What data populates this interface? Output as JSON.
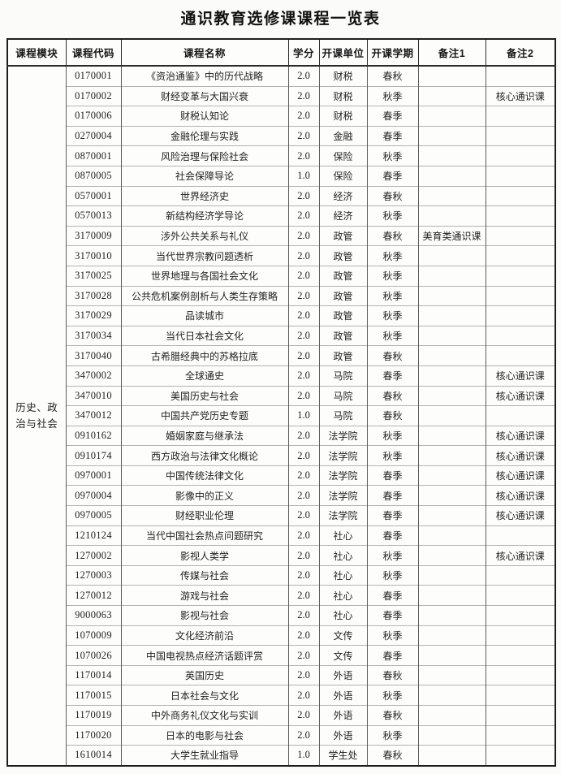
{
  "title": "通识教育选修课课程一览表",
  "table": {
    "headers": [
      "课程模块",
      "课程代码",
      "课程名称",
      "学分",
      "开课单位",
      "开课学期",
      "备注1",
      "备注2"
    ],
    "module_label": "历史、政治与社会",
    "rows": [
      {
        "code": "0170001",
        "name": "《资治通鉴》中的历代战略",
        "credit": "2.0",
        "unit": "财税",
        "semester": "春秋",
        "note1": "",
        "note2": ""
      },
      {
        "code": "0170002",
        "name": "财经变革与大国兴衰",
        "credit": "2.0",
        "unit": "财税",
        "semester": "秋季",
        "note1": "",
        "note2": "核心通识课"
      },
      {
        "code": "0170006",
        "name": "财税认知论",
        "credit": "2.0",
        "unit": "财税",
        "semester": "春季",
        "note1": "",
        "note2": ""
      },
      {
        "code": "0270004",
        "name": "金融伦理与实践",
        "credit": "2.0",
        "unit": "金融",
        "semester": "春季",
        "note1": "",
        "note2": ""
      },
      {
        "code": "0870001",
        "name": "风险治理与保险社会",
        "credit": "2.0",
        "unit": "保险",
        "semester": "秋季",
        "note1": "",
        "note2": ""
      },
      {
        "code": "0870005",
        "name": "社会保障导论",
        "credit": "1.0",
        "unit": "保险",
        "semester": "春季",
        "note1": "",
        "note2": ""
      },
      {
        "code": "0570001",
        "name": "世界经济史",
        "credit": "2.0",
        "unit": "经济",
        "semester": "春秋",
        "note1": "",
        "note2": ""
      },
      {
        "code": "0570013",
        "name": "新结构经济学导论",
        "credit": "2.0",
        "unit": "经济",
        "semester": "秋季",
        "note1": "",
        "note2": ""
      },
      {
        "code": "3170009",
        "name": "涉外公共关系与礼仪",
        "credit": "2.0",
        "unit": "政管",
        "semester": "春秋",
        "note1": "美育类通识课",
        "note2": ""
      },
      {
        "code": "3170010",
        "name": "当代世界宗教问题透析",
        "credit": "2.0",
        "unit": "政管",
        "semester": "秋季",
        "note1": "",
        "note2": ""
      },
      {
        "code": "3170025",
        "name": "世界地理与各国社会文化",
        "credit": "2.0",
        "unit": "政管",
        "semester": "秋季",
        "note1": "",
        "note2": ""
      },
      {
        "code": "3170028",
        "name": "公共危机案例剖析与人类生存策略",
        "credit": "2.0",
        "unit": "政管",
        "semester": "秋季",
        "note1": "",
        "note2": ""
      },
      {
        "code": "3170029",
        "name": "品读城市",
        "credit": "2.0",
        "unit": "政管",
        "semester": "秋季",
        "note1": "",
        "note2": ""
      },
      {
        "code": "3170034",
        "name": "当代日本社会文化",
        "credit": "2.0",
        "unit": "政管",
        "semester": "秋季",
        "note1": "",
        "note2": ""
      },
      {
        "code": "3170040",
        "name": "古希腊经典中的苏格拉底",
        "credit": "2.0",
        "unit": "政管",
        "semester": "春秋",
        "note1": "",
        "note2": ""
      },
      {
        "code": "3470002",
        "name": "全球通史",
        "credit": "2.0",
        "unit": "马院",
        "semester": "春季",
        "note1": "",
        "note2": "核心通识课"
      },
      {
        "code": "3470010",
        "name": "美国历史与社会",
        "credit": "2.0",
        "unit": "马院",
        "semester": "春秋",
        "note1": "",
        "note2": "核心通识课"
      },
      {
        "code": "3470012",
        "name": "中国共产党历史专题",
        "credit": "1.0",
        "unit": "马院",
        "semester": "春秋",
        "note1": "",
        "note2": ""
      },
      {
        "code": "0910162",
        "name": "婚姻家庭与继承法",
        "credit": "2.0",
        "unit": "法学院",
        "semester": "秋季",
        "note1": "",
        "note2": "核心通识课"
      },
      {
        "code": "0910174",
        "name": "西方政治与法律文化概论",
        "credit": "2.0",
        "unit": "法学院",
        "semester": "秋季",
        "note1": "",
        "note2": "核心通识课"
      },
      {
        "code": "0970001",
        "name": "中国传统法律文化",
        "credit": "2.0",
        "unit": "法学院",
        "semester": "春季",
        "note1": "",
        "note2": "核心通识课"
      },
      {
        "code": "0970004",
        "name": "影像中的正义",
        "credit": "2.0",
        "unit": "法学院",
        "semester": "春季",
        "note1": "",
        "note2": "核心通识课"
      },
      {
        "code": "0970005",
        "name": "财经职业伦理",
        "credit": "2.0",
        "unit": "法学院",
        "semester": "春季",
        "note1": "",
        "note2": "核心通识课"
      },
      {
        "code": "1210124",
        "name": "当代中国社会热点问题研究",
        "credit": "2.0",
        "unit": "社心",
        "semester": "春季",
        "note1": "",
        "note2": ""
      },
      {
        "code": "1270002",
        "name": "影视人类学",
        "credit": "2.0",
        "unit": "社心",
        "semester": "秋季",
        "note1": "",
        "note2": "核心通识课"
      },
      {
        "code": "1270003",
        "name": "传媒与社会",
        "credit": "2.0",
        "unit": "社心",
        "semester": "秋季",
        "note1": "",
        "note2": ""
      },
      {
        "code": "1270012",
        "name": "游戏与社会",
        "credit": "2.0",
        "unit": "社心",
        "semester": "春季",
        "note1": "",
        "note2": ""
      },
      {
        "code": "9000063",
        "name": "影视与社会",
        "credit": "2.0",
        "unit": "社心",
        "semester": "春季",
        "note1": "",
        "note2": ""
      },
      {
        "code": "1070009",
        "name": "文化经济前沿",
        "credit": "2.0",
        "unit": "文传",
        "semester": "秋季",
        "note1": "",
        "note2": ""
      },
      {
        "code": "1070026",
        "name": "中国电视热点经济话题评赏",
        "credit": "2.0",
        "unit": "文传",
        "semester": "春季",
        "note1": "",
        "note2": ""
      },
      {
        "code": "1170014",
        "name": "英国历史",
        "credit": "2.0",
        "unit": "外语",
        "semester": "春秋",
        "note1": "",
        "note2": ""
      },
      {
        "code": "1170015",
        "name": "日本社会与文化",
        "credit": "2.0",
        "unit": "外语",
        "semester": "秋季",
        "note1": "",
        "note2": ""
      },
      {
        "code": "1170019",
        "name": "中外商务礼仪文化与实训",
        "credit": "2.0",
        "unit": "外语",
        "semester": "春秋",
        "note1": "",
        "note2": ""
      },
      {
        "code": "1170020",
        "name": "日本的电影与社会",
        "credit": "2.0",
        "unit": "外语",
        "semester": "秋季",
        "note1": "",
        "note2": ""
      },
      {
        "code": "1610014",
        "name": "大学生就业指导",
        "credit": "1.0",
        "unit": "学生处",
        "semester": "春秋",
        "note1": "",
        "note2": ""
      }
    ]
  }
}
